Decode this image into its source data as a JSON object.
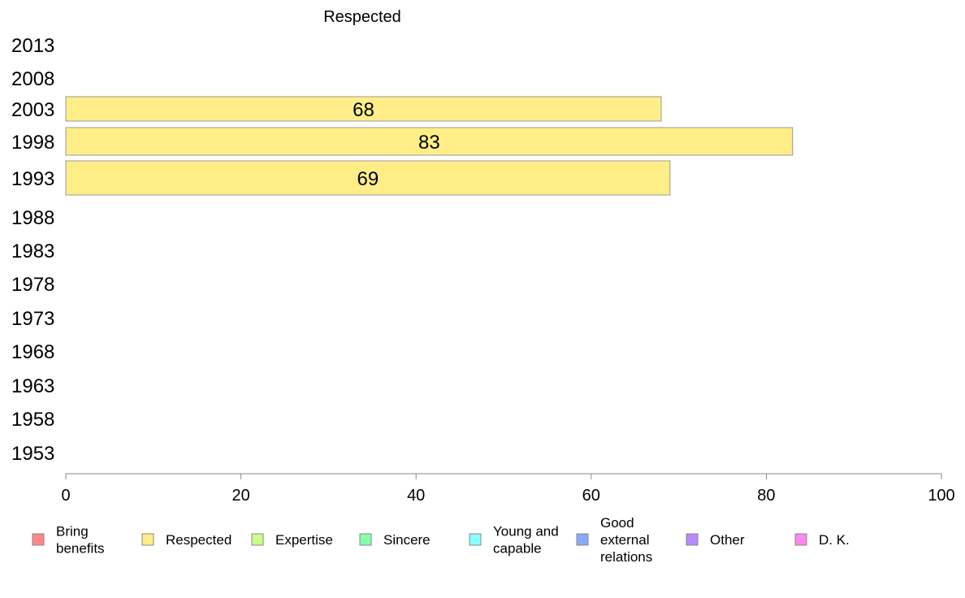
{
  "chart_data": {
    "type": "bar",
    "orientation": "horizontal",
    "title": "Respected",
    "categories": [
      "2013",
      "2008",
      "2003",
      "1998",
      "1993",
      "1988",
      "1983",
      "1978",
      "1973",
      "1968",
      "1963",
      "1958",
      "1953"
    ],
    "series": [
      {
        "name": "Respected",
        "color": "#FFEE88",
        "values": [
          null,
          null,
          68,
          83,
          69,
          null,
          null,
          null,
          null,
          null,
          null,
          null,
          null
        ]
      }
    ],
    "xlim": [
      0,
      100
    ],
    "x_ticks": [
      "0",
      "20",
      "40",
      "60",
      "80",
      "100"
    ],
    "grid": false,
    "legend_position": "bottom",
    "legend": [
      {
        "label": "Bring\nbenefits",
        "color": "#FF8888"
      },
      {
        "label": "Respected",
        "color": "#FFEE88"
      },
      {
        "label": "Expertise",
        "color": "#CCFF88"
      },
      {
        "label": "Sincere",
        "color": "#88FFAA"
      },
      {
        "label": "Young and\ncapable",
        "color": "#88FFFF"
      },
      {
        "label": "Good\nexternal\nrelations",
        "color": "#88AAFF"
      },
      {
        "label": "Other",
        "color": "#BB88FF"
      },
      {
        "label": "D. K.",
        "color": "#FF88EE"
      }
    ]
  }
}
